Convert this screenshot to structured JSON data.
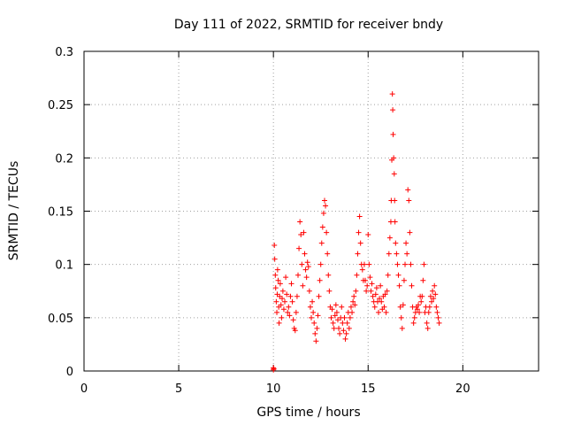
{
  "chart_data": {
    "type": "scatter",
    "title": "Day 111 of 2022, SRMTID for receiver bndy",
    "xlabel": "GPS time / hours",
    "ylabel": "SRMTID / TECUs",
    "xlim": [
      0,
      24
    ],
    "ylim": [
      0,
      0.3
    ],
    "xticks": [
      0,
      5,
      10,
      15,
      20
    ],
    "xtick_labels": [
      "0",
      "5",
      "10",
      "15",
      "20"
    ],
    "yticks": [
      0,
      0.05,
      0.1,
      0.15,
      0.2,
      0.25,
      0.3
    ],
    "ytick_labels": [
      "0",
      "0.05",
      "0.1",
      "0.15",
      "0.2",
      "0.25",
      "0.3"
    ],
    "grid": true,
    "marker": "+",
    "color": "#ff0000",
    "series": [
      {
        "name": "SRMTID",
        "points": [
          [
            10.0,
            0.001
          ],
          [
            10.0,
            0.003
          ],
          [
            10.02,
            0.002
          ],
          [
            10.05,
            0.118
          ],
          [
            10.07,
            0.105
          ],
          [
            10.1,
            0.09
          ],
          [
            10.12,
            0.078
          ],
          [
            10.15,
            0.065
          ],
          [
            10.18,
            0.055
          ],
          [
            10.2,
            0.072
          ],
          [
            10.22,
            0.095
          ],
          [
            10.25,
            0.085
          ],
          [
            10.28,
            0.06
          ],
          [
            10.3,
            0.045
          ],
          [
            10.33,
            0.07
          ],
          [
            10.36,
            0.082
          ],
          [
            10.4,
            0.062
          ],
          [
            10.43,
            0.05
          ],
          [
            10.46,
            0.068
          ],
          [
            10.5,
            0.075
          ],
          [
            10.55,
            0.058
          ],
          [
            10.6,
            0.065
          ],
          [
            10.65,
            0.088
          ],
          [
            10.7,
            0.072
          ],
          [
            10.75,
            0.055
          ],
          [
            10.8,
            0.06
          ],
          [
            10.85,
            0.052
          ],
          [
            10.9,
            0.07
          ],
          [
            10.95,
            0.082
          ],
          [
            11.0,
            0.065
          ],
          [
            11.05,
            0.048
          ],
          [
            11.1,
            0.04
          ],
          [
            11.15,
            0.038
          ],
          [
            11.2,
            0.055
          ],
          [
            11.25,
            0.07
          ],
          [
            11.3,
            0.09
          ],
          [
            11.35,
            0.115
          ],
          [
            11.4,
            0.14
          ],
          [
            11.45,
            0.128
          ],
          [
            11.5,
            0.1
          ],
          [
            11.55,
            0.08
          ],
          [
            11.6,
            0.13
          ],
          [
            11.65,
            0.11
          ],
          [
            11.7,
            0.095
          ],
          [
            11.75,
            0.088
          ],
          [
            11.8,
            0.102
          ],
          [
            11.85,
            0.098
          ],
          [
            11.9,
            0.075
          ],
          [
            11.95,
            0.06
          ],
          [
            12.0,
            0.05
          ],
          [
            12.05,
            0.065
          ],
          [
            12.1,
            0.055
          ],
          [
            12.15,
            0.045
          ],
          [
            12.2,
            0.035
          ],
          [
            12.25,
            0.028
          ],
          [
            12.3,
            0.04
          ],
          [
            12.35,
            0.052
          ],
          [
            12.4,
            0.07
          ],
          [
            12.45,
            0.085
          ],
          [
            12.5,
            0.1
          ],
          [
            12.55,
            0.12
          ],
          [
            12.6,
            0.135
          ],
          [
            12.65,
            0.148
          ],
          [
            12.7,
            0.16
          ],
          [
            12.75,
            0.155
          ],
          [
            12.8,
            0.13
          ],
          [
            12.85,
            0.11
          ],
          [
            12.9,
            0.09
          ],
          [
            12.95,
            0.075
          ],
          [
            13.0,
            0.06
          ],
          [
            13.05,
            0.05
          ],
          [
            13.1,
            0.058
          ],
          [
            13.15,
            0.045
          ],
          [
            13.2,
            0.04
          ],
          [
            13.25,
            0.052
          ],
          [
            13.3,
            0.062
          ],
          [
            13.35,
            0.055
          ],
          [
            13.4,
            0.048
          ],
          [
            13.45,
            0.04
          ],
          [
            13.5,
            0.035
          ],
          [
            13.55,
            0.05
          ],
          [
            13.6,
            0.06
          ],
          [
            13.65,
            0.045
          ],
          [
            13.7,
            0.038
          ],
          [
            13.75,
            0.05
          ],
          [
            13.8,
            0.03
          ],
          [
            13.85,
            0.035
          ],
          [
            13.9,
            0.045
          ],
          [
            13.95,
            0.055
          ],
          [
            14.0,
            0.04
          ],
          [
            14.05,
            0.05
          ],
          [
            14.1,
            0.06
          ],
          [
            14.15,
            0.055
          ],
          [
            14.2,
            0.065
          ],
          [
            14.25,
            0.07
          ],
          [
            14.3,
            0.062
          ],
          [
            14.35,
            0.075
          ],
          [
            14.4,
            0.09
          ],
          [
            14.45,
            0.11
          ],
          [
            14.5,
            0.13
          ],
          [
            14.55,
            0.145
          ],
          [
            14.6,
            0.12
          ],
          [
            14.65,
            0.1
          ],
          [
            14.7,
            0.095
          ],
          [
            14.75,
            0.085
          ],
          [
            14.8,
            0.1
          ],
          [
            14.85,
            0.085
          ],
          [
            14.9,
            0.075
          ],
          [
            14.95,
            0.08
          ],
          [
            15.0,
            0.128
          ],
          [
            15.05,
            0.1
          ],
          [
            15.1,
            0.088
          ],
          [
            15.15,
            0.075
          ],
          [
            15.2,
            0.082
          ],
          [
            15.25,
            0.07
          ],
          [
            15.3,
            0.065
          ],
          [
            15.35,
            0.06
          ],
          [
            15.4,
            0.072
          ],
          [
            15.45,
            0.078
          ],
          [
            15.5,
            0.065
          ],
          [
            15.55,
            0.055
          ],
          [
            15.6,
            0.068
          ],
          [
            15.65,
            0.08
          ],
          [
            15.7,
            0.065
          ],
          [
            15.75,
            0.058
          ],
          [
            15.8,
            0.07
          ],
          [
            15.85,
            0.06
          ],
          [
            15.9,
            0.072
          ],
          [
            15.95,
            0.055
          ],
          [
            16.0,
            0.075
          ],
          [
            16.05,
            0.09
          ],
          [
            16.1,
            0.11
          ],
          [
            16.15,
            0.125
          ],
          [
            16.2,
            0.14
          ],
          [
            16.22,
            0.16
          ],
          [
            16.25,
            0.198
          ],
          [
            16.28,
            0.26
          ],
          [
            16.3,
            0.245
          ],
          [
            16.32,
            0.222
          ],
          [
            16.35,
            0.2
          ],
          [
            16.38,
            0.185
          ],
          [
            16.4,
            0.16
          ],
          [
            16.42,
            0.14
          ],
          [
            16.45,
            0.12
          ],
          [
            16.5,
            0.11
          ],
          [
            16.55,
            0.1
          ],
          [
            16.6,
            0.09
          ],
          [
            16.65,
            0.08
          ],
          [
            16.7,
            0.06
          ],
          [
            16.75,
            0.05
          ],
          [
            16.8,
            0.04
          ],
          [
            16.85,
            0.062
          ],
          [
            16.9,
            0.085
          ],
          [
            16.95,
            0.1
          ],
          [
            17.0,
            0.12
          ],
          [
            17.05,
            0.11
          ],
          [
            17.1,
            0.17
          ],
          [
            17.15,
            0.16
          ],
          [
            17.2,
            0.13
          ],
          [
            17.25,
            0.1
          ],
          [
            17.3,
            0.08
          ],
          [
            17.35,
            0.06
          ],
          [
            17.4,
            0.045
          ],
          [
            17.45,
            0.05
          ],
          [
            17.5,
            0.055
          ],
          [
            17.55,
            0.06
          ],
          [
            17.6,
            0.058
          ],
          [
            17.65,
            0.062
          ],
          [
            17.7,
            0.055
          ],
          [
            17.75,
            0.07
          ],
          [
            17.8,
            0.065
          ],
          [
            17.85,
            0.07
          ],
          [
            17.9,
            0.085
          ],
          [
            17.95,
            0.1
          ],
          [
            18.0,
            0.055
          ],
          [
            18.05,
            0.06
          ],
          [
            18.1,
            0.045
          ],
          [
            18.15,
            0.04
          ],
          [
            18.2,
            0.055
          ],
          [
            18.25,
            0.06
          ],
          [
            18.3,
            0.07
          ],
          [
            18.35,
            0.065
          ],
          [
            18.4,
            0.075
          ],
          [
            18.45,
            0.068
          ],
          [
            18.5,
            0.08
          ],
          [
            18.55,
            0.072
          ],
          [
            18.6,
            0.06
          ],
          [
            18.65,
            0.055
          ],
          [
            18.7,
            0.05
          ],
          [
            18.75,
            0.045
          ]
        ]
      }
    ]
  }
}
